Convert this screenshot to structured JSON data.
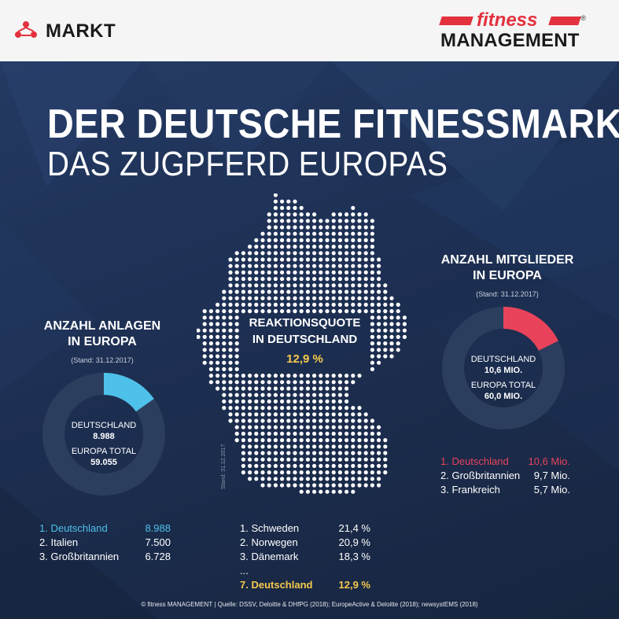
{
  "header": {
    "section_label": "MARKT",
    "logo_fitness": "fitness",
    "logo_management": "MANAGEMENT",
    "logo_registered": "®"
  },
  "title": {
    "line1": "DER DEUTSCHE FITNESSMARKT",
    "line2": "DAS ZUGPFERD EUROPAS"
  },
  "colors": {
    "background": "#1c2b4a",
    "donut_track": "#2c3e5e",
    "anlagen_accent": "#4ec1ea",
    "mitglieder_accent": "#e8435a",
    "reaktion_accent": "#f5c94c"
  },
  "icons": {
    "markt": "people-network-icon"
  },
  "anlagen": {
    "heading_line1": "ANZAHL ANLAGEN",
    "heading_line2": "IN EUROPA",
    "stand": "(Stand: 31.12.2017)",
    "center_label1": "DEUTSCHLAND",
    "center_value1": "8.988",
    "center_label2": "EUROPA TOTAL",
    "center_value2": "59.055",
    "ranking": [
      {
        "label": "1. Deutschland",
        "value": "8.988"
      },
      {
        "label": "2. Italien",
        "value": "7.500"
      },
      {
        "label": "3. Großbritannien",
        "value": "6.728"
      }
    ]
  },
  "mitglieder": {
    "heading_line1": "ANZAHL MITGLIEDER",
    "heading_line2": "IN EUROPA",
    "stand": "(Stand: 31.12.2017)",
    "center_label1": "DEUTSCHLAND",
    "center_value1": "10,6 MIO.",
    "center_label2": "EUROPA TOTAL",
    "center_value2": "60,0 MIO.",
    "ranking": [
      {
        "label": "1. Deutschland",
        "value": "10,6 Mio."
      },
      {
        "label": "2. Großbritannien",
        "value": "9,7 Mio."
      },
      {
        "label": "3. Frankreich",
        "value": "5,7 Mio."
      }
    ]
  },
  "reaktionsquote": {
    "heading_line1": "REAKTIONSQUOTE",
    "heading_line2": "IN DEUTSCHLAND",
    "value": "12,9 %",
    "map_stand": "Stand: 31.12.2017",
    "ranking": [
      {
        "label": "1. Schweden",
        "value": "21,4 %"
      },
      {
        "label": "2. Norwegen",
        "value": "20,9 %"
      },
      {
        "label": "3. Dänemark",
        "value": "18,3 %"
      },
      {
        "label": "...",
        "value": ""
      },
      {
        "label": "7. Deutschland",
        "value": "12,9 %"
      }
    ]
  },
  "footer": "© fitness MANAGEMENT  |  Quelle: DSSV, Deloitte & DHfPG (2018); EuropeActive & Deloitte (2018); newsystEMS (2018)",
  "chart_data": [
    {
      "type": "pie",
      "title": "ANZAHL ANLAGEN IN EUROPA",
      "categories": [
        "DEUTSCHLAND",
        "EUROPA TOTAL"
      ],
      "values": [
        8988,
        59055
      ],
      "ranking": {
        "categories": [
          "Deutschland",
          "Italien",
          "Großbritannien"
        ],
        "values": [
          8988,
          7500,
          6728
        ]
      }
    },
    {
      "type": "pie",
      "title": "ANZAHL MITGLIEDER IN EUROPA",
      "categories": [
        "DEUTSCHLAND",
        "EUROPA TOTAL"
      ],
      "values": [
        10.6,
        60.0
      ],
      "ranking": {
        "categories": [
          "Deutschland",
          "Großbritannien",
          "Frankreich"
        ],
        "values": [
          10.6,
          9.7,
          5.7
        ]
      }
    },
    {
      "type": "table",
      "title": "REAKTIONSQUOTE IN DEUTSCHLAND",
      "categories": [
        "Schweden",
        "Norwegen",
        "Dänemark",
        "Deutschland"
      ],
      "values": [
        21.4,
        20.9,
        18.3,
        12.9
      ]
    }
  ]
}
